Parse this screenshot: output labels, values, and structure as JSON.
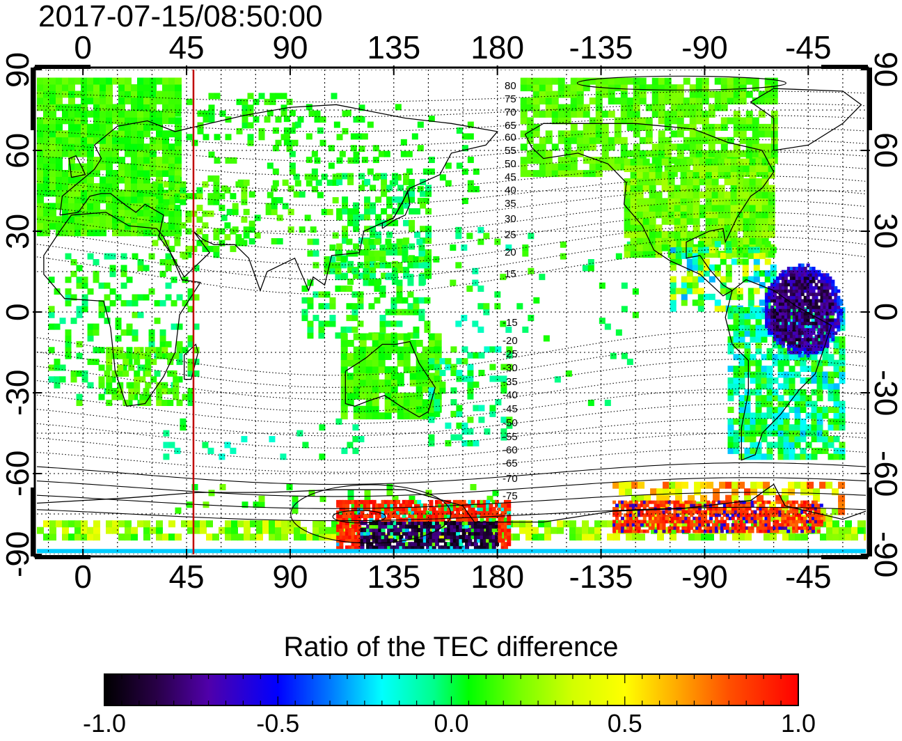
{
  "timestamp": "2017-07-15/08:50:00",
  "colorbar": {
    "title": "Ratio of the TEC difference",
    "ticks": [
      "-1.0",
      "-0.5",
      "0.0",
      "0.5",
      "1.0"
    ],
    "colors": [
      "#000000",
      "#1a0033",
      "#3b0080",
      "#5500cc",
      "#0000ff",
      "#0066ff",
      "#00ccff",
      "#00ffff",
      "#00ff99",
      "#00ff00",
      "#66ff00",
      "#ccff00",
      "#ffff00",
      "#ffaa00",
      "#ff5500",
      "#ff0000"
    ]
  },
  "axes": {
    "top_lon_labels": [
      "0",
      "45",
      "90",
      "135",
      "180",
      "-135",
      "-90",
      "-45"
    ],
    "bottom_lon_labels": [
      "0",
      "45",
      "90",
      "135",
      "180",
      "-135",
      "-90",
      "-45"
    ],
    "left_lat_labels": [
      "90",
      "60",
      "30",
      "0",
      "-30",
      "-60",
      "-90"
    ],
    "right_lat_labels": [
      "90",
      "60",
      "30",
      "0",
      "-30",
      "-60",
      "-90"
    ]
  },
  "map": {
    "longitude_range": [
      -20,
      340
    ],
    "latitude_range": [
      -90,
      90
    ],
    "grid_spacing_lon": 15,
    "grid_spacing_lat": 15,
    "marked_longitude": 48,
    "marker_color": "#c00000",
    "contour_labels_north": [
      "80",
      "75",
      "70",
      "65",
      "60",
      "55",
      "50",
      "45",
      "40",
      "35",
      "30",
      "25",
      "20",
      "15"
    ],
    "contour_labels_south": [
      "-15",
      "-20",
      "-25",
      "-30",
      "-35",
      "-40",
      "-45",
      "-50",
      "-55",
      "-60",
      "-65",
      "-70",
      "-75"
    ]
  }
}
